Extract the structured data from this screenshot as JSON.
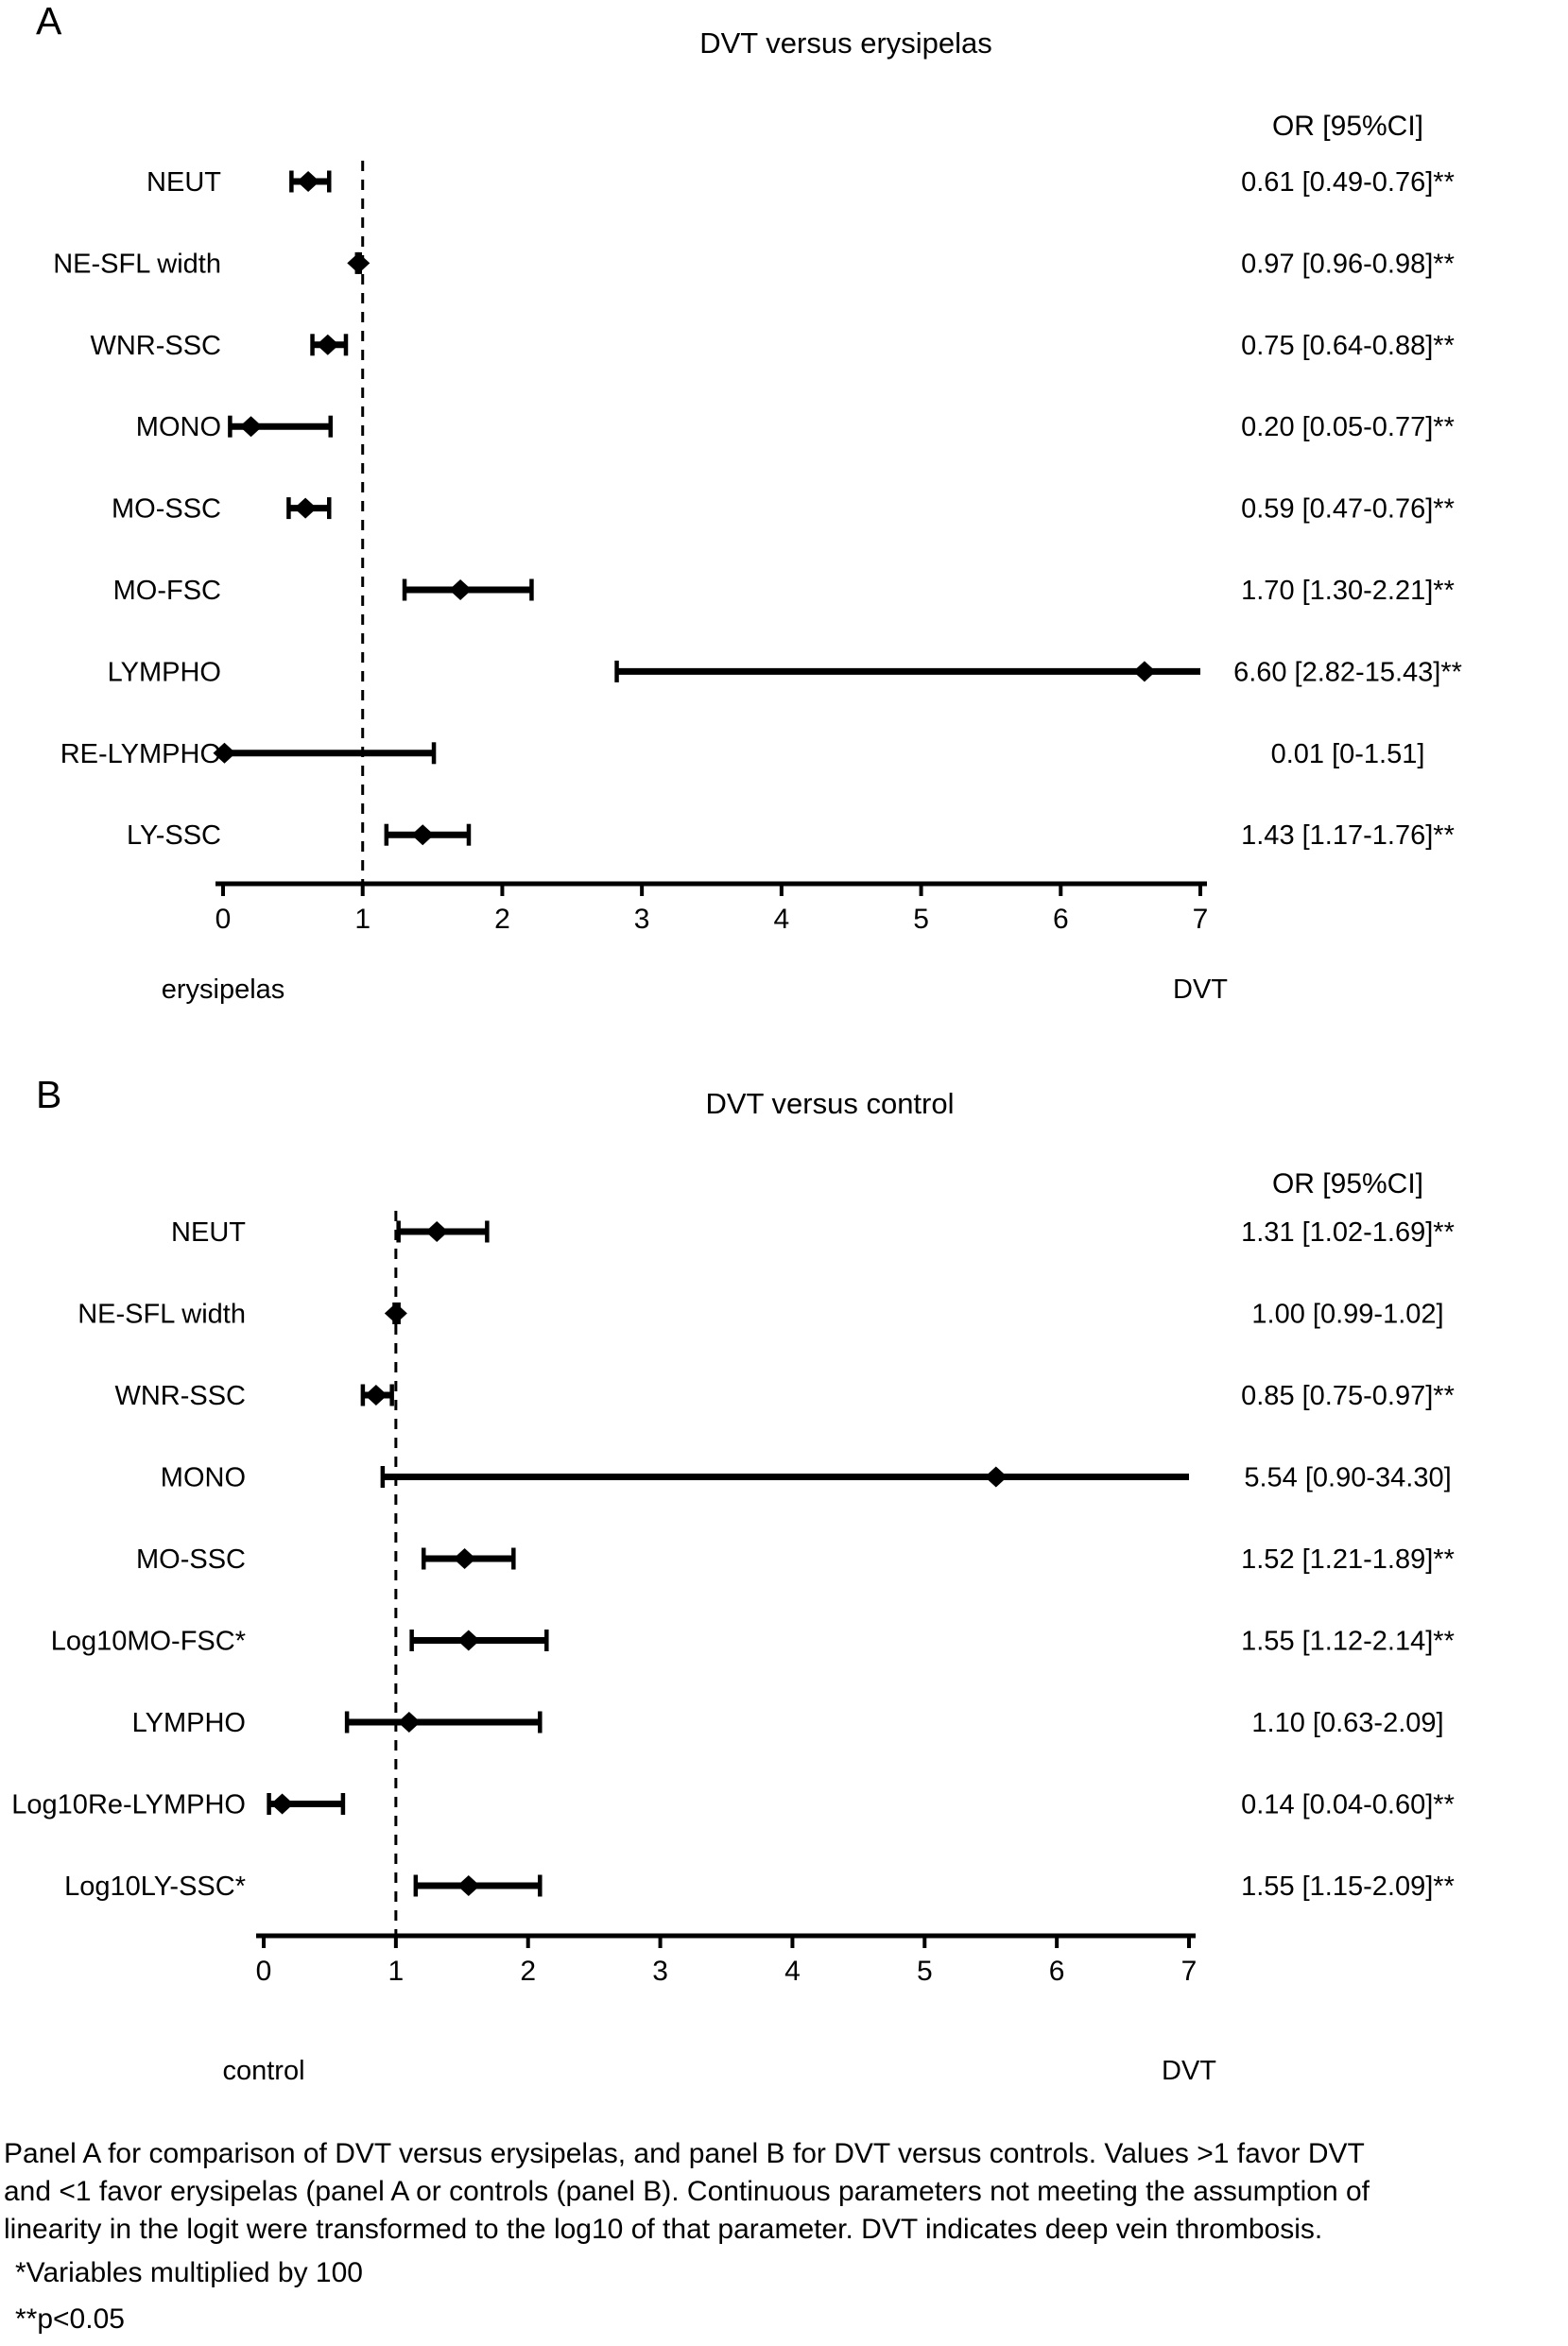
{
  "colors": {
    "foreground": "#000000",
    "background": "#ffffff"
  },
  "caption": {
    "lines": [
      "Panel A for comparison of DVT versus erysipelas, and panel B for DVT versus controls. Values >1 favor DVT",
      "and <1 favor erysipelas (panel A or controls (panel B). Continuous parameters not meeting the assumption of",
      "linearity in the logit were transformed to the log10 of that parameter. DVT indicates deep vein thrombosis."
    ],
    "footnotes": [
      "*Variables multiplied by 100",
      "**p<0.05"
    ]
  },
  "chart_data": [
    {
      "type": "scatter",
      "subtype": "forest-plot",
      "panel_letter": "A",
      "title": "DVT versus erysipelas",
      "column_header": "OR [95%CI]",
      "xlim": [
        0,
        7
      ],
      "xticks": [
        0,
        1,
        2,
        3,
        4,
        5,
        6,
        7
      ],
      "reference_line_x": 1,
      "xlabel_left": "erysipelas",
      "xlabel_right": "DVT",
      "rows": [
        {
          "label": "NEUT",
          "or": 0.61,
          "ci_low": 0.49,
          "ci_high": 0.76,
          "or_text": "0.61 [0.49-0.76]**"
        },
        {
          "label": "NE-SFL width",
          "or": 0.97,
          "ci_low": 0.96,
          "ci_high": 0.98,
          "or_text": "0.97 [0.96-0.98]**"
        },
        {
          "label": "WNR-SSC",
          "or": 0.75,
          "ci_low": 0.64,
          "ci_high": 0.88,
          "or_text": "0.75 [0.64-0.88]**"
        },
        {
          "label": "MONO",
          "or": 0.2,
          "ci_low": 0.05,
          "ci_high": 0.77,
          "or_text": "0.20 [0.05-0.77]**"
        },
        {
          "label": "MO-SSC",
          "or": 0.59,
          "ci_low": 0.47,
          "ci_high": 0.76,
          "or_text": "0.59 [0.47-0.76]**"
        },
        {
          "label": "MO-FSC",
          "or": 1.7,
          "ci_low": 1.3,
          "ci_high": 2.21,
          "or_text": "1.70 [1.30-2.21]**"
        },
        {
          "label": "LYMPHO",
          "or": 6.6,
          "ci_low": 2.82,
          "ci_high": 15.43,
          "or_text": "6.60 [2.82-15.43]**"
        },
        {
          "label": "RE-LYMPHO",
          "or": 0.01,
          "ci_low": 0,
          "ci_high": 1.51,
          "or_text": "0.01 [0-1.51]"
        },
        {
          "label": "LY-SSC",
          "or": 1.43,
          "ci_low": 1.17,
          "ci_high": 1.76,
          "or_text": "1.43 [1.17-1.76]**"
        }
      ]
    },
    {
      "type": "scatter",
      "subtype": "forest-plot",
      "panel_letter": "B",
      "title": "DVT versus control",
      "column_header": "OR [95%CI]",
      "xlim": [
        0,
        7
      ],
      "xticks": [
        0,
        1,
        2,
        3,
        4,
        5,
        6,
        7
      ],
      "reference_line_x": 1,
      "xlabel_left": "control",
      "xlabel_right": "DVT",
      "rows": [
        {
          "label": "NEUT",
          "or": 1.31,
          "ci_low": 1.02,
          "ci_high": 1.69,
          "or_text": "1.31 [1.02-1.69]**"
        },
        {
          "label": "NE-SFL width",
          "or": 1.0,
          "ci_low": 0.99,
          "ci_high": 1.02,
          "or_text": "1.00 [0.99-1.02]"
        },
        {
          "label": "WNR-SSC",
          "or": 0.85,
          "ci_low": 0.75,
          "ci_high": 0.97,
          "or_text": "0.85 [0.75-0.97]**"
        },
        {
          "label": "MONO",
          "or": 5.54,
          "ci_low": 0.9,
          "ci_high": 34.3,
          "or_text": "5.54 [0.90-34.30]"
        },
        {
          "label": "MO-SSC",
          "or": 1.52,
          "ci_low": 1.21,
          "ci_high": 1.89,
          "or_text": "1.52 [1.21-1.89]**"
        },
        {
          "label": "Log10MO-FSC*",
          "or": 1.55,
          "ci_low": 1.12,
          "ci_high": 2.14,
          "or_text": "1.55 [1.12-2.14]**"
        },
        {
          "label": "LYMPHO",
          "or": 1.1,
          "ci_low": 0.63,
          "ci_high": 2.09,
          "or_text": "1.10 [0.63-2.09]"
        },
        {
          "label": "Log10Re-LYMPHO",
          "or": 0.14,
          "ci_low": 0.04,
          "ci_high": 0.6,
          "or_text": "0.14 [0.04-0.60]**"
        },
        {
          "label": "Log10LY-SSC*",
          "or": 1.55,
          "ci_low": 1.15,
          "ci_high": 2.09,
          "or_text": "1.55 [1.15-2.09]**"
        }
      ]
    }
  ]
}
